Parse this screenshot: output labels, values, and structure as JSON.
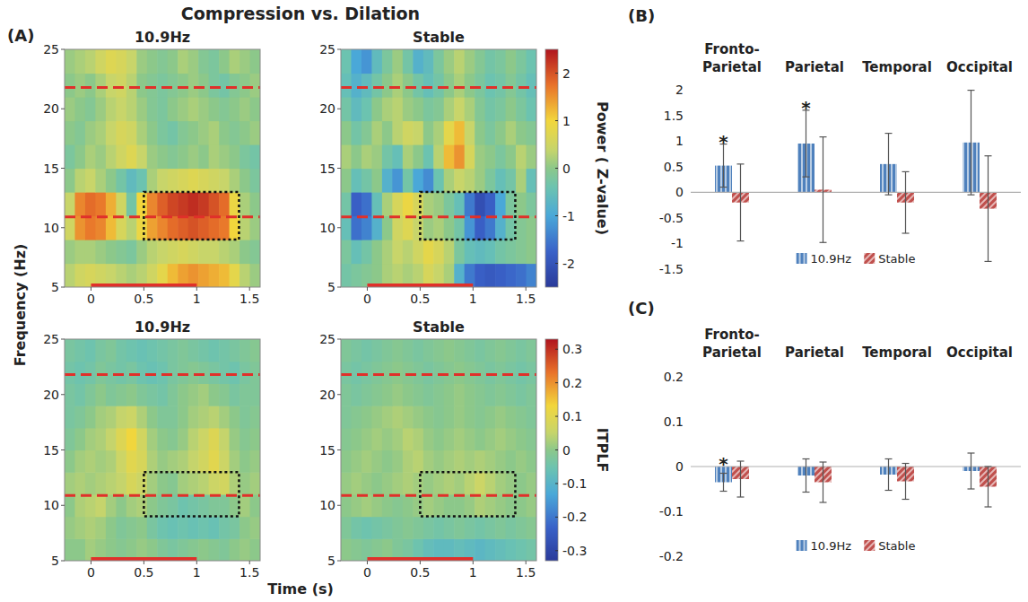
{
  "figure": {
    "title": "Compression vs. Dilation",
    "x_label": "Time (s)",
    "y_label": "Frequency (Hz)",
    "panel_labels": [
      "(A)",
      "(B)",
      "(C)"
    ]
  },
  "chart_data": [
    {
      "type": "heatmap",
      "title": "10.9Hz",
      "xlim": [
        -0.25,
        1.6
      ],
      "ylim": [
        5,
        25
      ],
      "xticks": [
        0,
        0.5,
        1,
        1.5
      ],
      "yticks": [
        5,
        10,
        15,
        20,
        25
      ],
      "color_range": [
        -2.5,
        2.5
      ],
      "reference_lines": [
        10.9,
        21.8
      ],
      "stimulus": [
        0,
        1
      ],
      "roi": {
        "x": [
          0.5,
          1.4
        ],
        "y": [
          9,
          13
        ]
      },
      "cells": [
        [
          0.3,
          0.5,
          0.6,
          0.5,
          0.4,
          0.3,
          0.2,
          0.3,
          0.5,
          0.8,
          1.2,
          1.4,
          1.5,
          1.4,
          1.3,
          1.2,
          0.8,
          0.3,
          0.1
        ],
        [
          0.1,
          0.2,
          0.2,
          0.1,
          0,
          -0.1,
          -0.2,
          0.1,
          0.3,
          0.4,
          0.5,
          0.6,
          0.5,
          0.4,
          0.4,
          0.3,
          0.2,
          0,
          -0.1
        ],
        [
          0.5,
          1.5,
          1.7,
          1.6,
          1.2,
          0.6,
          0.3,
          0.9,
          1.4,
          1.6,
          1.8,
          1.9,
          2.0,
          1.9,
          1.8,
          1.7,
          1.0,
          0.3,
          0.1
        ],
        [
          0.4,
          1.6,
          1.8,
          1.7,
          1.3,
          0.5,
          -0.3,
          1.0,
          1.6,
          1.9,
          2.1,
          2.2,
          2.3,
          2.2,
          2.0,
          1.8,
          0.9,
          0.2,
          0
        ],
        [
          0,
          0.3,
          0.4,
          0.2,
          0,
          -0.3,
          -0.6,
          -0.4,
          0.2,
          0.4,
          0.5,
          0.6,
          0.7,
          0.6,
          0.5,
          0.4,
          0.2,
          0,
          -0.2
        ],
        [
          -0.2,
          0,
          0.2,
          0.1,
          0.3,
          0.5,
          0.7,
          0.4,
          0.1,
          0,
          -0.1,
          0,
          0.1,
          0,
          0.2,
          0.1,
          0,
          -0.2,
          -0.3
        ],
        [
          0,
          -0.1,
          0.1,
          0.2,
          0.4,
          0.6,
          0.5,
          0.2,
          0,
          -0.2,
          -0.3,
          -0.1,
          0,
          0.1,
          0.2,
          0,
          -0.1,
          0,
          0.1
        ],
        [
          0.1,
          0,
          -0.1,
          0.1,
          0.3,
          0.4,
          0.3,
          0.1,
          -0.1,
          -0.2,
          0,
          0.1,
          0.2,
          0.1,
          0,
          -0.1,
          0,
          0.1,
          0
        ],
        [
          0,
          0.1,
          0,
          0.2,
          0.4,
          0.5,
          0.3,
          0,
          -0.1,
          -0.2,
          -0.1,
          0,
          0.1,
          0,
          -0.2,
          -0.3,
          -0.1,
          0,
          0.1
        ],
        [
          0.1,
          0.2,
          0.3,
          0.5,
          0.7,
          0.6,
          0.4,
          0.1,
          0,
          -0.1,
          0,
          0.2,
          0.1,
          -0.1,
          -0.2,
          0,
          0.2,
          0.1,
          0
        ]
      ]
    },
    {
      "type": "heatmap",
      "title": "Stable",
      "xlim": [
        -0.25,
        1.6
      ],
      "ylim": [
        5,
        25
      ],
      "xticks": [
        0,
        0.5,
        1,
        1.5
      ],
      "yticks": [
        5,
        10,
        15,
        20,
        25
      ],
      "color_range": [
        -2.5,
        2.5
      ],
      "color_ticks": [
        -2,
        -1,
        0,
        1,
        2
      ],
      "color_label": "Power ( Z-value)",
      "reference_lines": [
        10.9,
        21.8
      ],
      "stimulus": [
        0,
        1
      ],
      "roi": {
        "x": [
          0.5,
          1.4
        ],
        "y": [
          9,
          13
        ]
      },
      "cells": [
        [
          -0.3,
          -0.2,
          -0.1,
          0,
          0.2,
          0.3,
          0.2,
          0.3,
          0.6,
          0.4,
          0.2,
          -0.8,
          -1.5,
          -1.8,
          -1.9,
          -1.8,
          -1.7,
          -1.6,
          -1.4
        ],
        [
          -0.2,
          -0.5,
          -0.3,
          0,
          0.2,
          0.4,
          0.3,
          0.5,
          0.8,
          0.6,
          0.3,
          -0.2,
          -0.5,
          -0.6,
          -0.5,
          -0.3,
          -0.2,
          -0.1,
          0
        ],
        [
          -0.5,
          -1.6,
          -1.4,
          -0.8,
          0,
          0.5,
          0.7,
          0.4,
          0.1,
          0.2,
          0,
          -0.3,
          -1.2,
          -1.8,
          -1.5,
          -0.8,
          -0.3,
          -0.1,
          0
        ],
        [
          -0.3,
          -1.8,
          -1.6,
          -0.5,
          0.2,
          0.6,
          0.9,
          0.6,
          0.2,
          0.1,
          -0.2,
          -0.5,
          -1.5,
          -2.1,
          -1.8,
          -1.0,
          -0.2,
          0,
          -0.2
        ],
        [
          0,
          -0.5,
          -0.3,
          0,
          -0.8,
          -1.2,
          -0.3,
          -1.0,
          -1.3,
          -0.4,
          0.2,
          0.4,
          0.3,
          0.1,
          -0.2,
          -0.5,
          -0.3,
          0.2,
          -0.5
        ],
        [
          0.2,
          0,
          0.2,
          0.1,
          -0.3,
          -0.5,
          0.2,
          0,
          -0.4,
          0.3,
          1.2,
          1.5,
          0.6,
          0.1,
          0,
          -0.2,
          0,
          0.3,
          0.1
        ],
        [
          0,
          -0.3,
          -0.1,
          0.2,
          0,
          0.3,
          0.5,
          0.4,
          0,
          0.2,
          0.8,
          1.2,
          0.4,
          0,
          -0.2,
          0,
          0.2,
          0,
          -0.1
        ],
        [
          -0.3,
          -0.6,
          -0.4,
          0,
          0.2,
          0.3,
          0.1,
          0,
          -0.2,
          -0.1,
          0.2,
          0.4,
          0.2,
          -0.1,
          -0.3,
          -0.2,
          0,
          -0.2,
          -0.4
        ],
        [
          -0.5,
          -0.8,
          -0.6,
          -0.3,
          0,
          0.2,
          0,
          -0.3,
          -0.5,
          -0.3,
          0,
          0.2,
          0,
          -0.2,
          -0.4,
          -0.3,
          -0.1,
          -0.3,
          -0.5
        ],
        [
          -0.4,
          -1.0,
          -1.2,
          -0.6,
          -0.2,
          0.1,
          -0.3,
          -0.8,
          -0.6,
          -0.2,
          0.1,
          0.3,
          0.1,
          -0.1,
          -0.3,
          -0.2,
          0,
          -0.2,
          -0.4
        ]
      ]
    },
    {
      "type": "heatmap",
      "title": "10.9Hz",
      "xlim": [
        -0.25,
        1.6
      ],
      "ylim": [
        5,
        25
      ],
      "xticks": [
        0,
        0.5,
        1,
        1.5
      ],
      "yticks": [
        5,
        10,
        15,
        20,
        25
      ],
      "color_range": [
        -0.33,
        0.33
      ],
      "reference_lines": [
        10.9,
        21.8
      ],
      "stimulus": [
        0,
        1
      ],
      "roi": {
        "x": [
          0.5,
          1.4
        ],
        "y": [
          9,
          13
        ]
      },
      "cells": [
        [
          0,
          0,
          0.02,
          0.01,
          0,
          -0.01,
          0,
          0.01,
          0,
          -0.02,
          -0.03,
          -0.02,
          -0.01,
          0,
          -0.01,
          -0.02,
          0,
          0.01,
          0
        ],
        [
          0.01,
          0.02,
          0.03,
          0.02,
          0,
          -0.02,
          -0.01,
          0,
          -0.03,
          -0.05,
          -0.06,
          -0.05,
          -0.06,
          -0.05,
          -0.06,
          -0.04,
          -0.03,
          0,
          0.01
        ],
        [
          0,
          0.03,
          0.04,
          0.05,
          0.02,
          0,
          0.02,
          0.03,
          0,
          -0.02,
          -0.03,
          -0.05,
          -0.04,
          -0.03,
          -0.02,
          -0.02,
          0,
          0.02,
          0
        ],
        [
          0.02,
          0.03,
          0.02,
          0.03,
          0.04,
          0.05,
          0.08,
          0.06,
          0.02,
          0,
          -0.01,
          0.02,
          0.03,
          0.04,
          0.06,
          0.07,
          0.03,
          0.01,
          0.02
        ],
        [
          0,
          0.02,
          0.03,
          0.02,
          0.03,
          0.06,
          0.1,
          0.08,
          0.03,
          0.01,
          0.02,
          0.03,
          0.05,
          0.07,
          0.1,
          0.06,
          0.02,
          0,
          0.01
        ],
        [
          -0.02,
          0,
          0.02,
          0.03,
          0.05,
          0.09,
          0.13,
          0.07,
          0.02,
          0,
          -0.01,
          0.01,
          0.04,
          0.06,
          0.09,
          0.05,
          0.01,
          -0.01,
          0
        ],
        [
          -0.03,
          -0.02,
          0,
          0.02,
          0.03,
          0.05,
          0.06,
          0.03,
          0,
          -0.02,
          -0.02,
          0,
          0.02,
          0.03,
          0.04,
          0.02,
          0,
          -0.02,
          -0.01
        ],
        [
          -0.03,
          -0.04,
          -0.02,
          0,
          -0.02,
          -0.01,
          0,
          -0.02,
          -0.03,
          -0.04,
          -0.02,
          0,
          0.01,
          0.02,
          0,
          -0.01,
          -0.03,
          -0.02,
          -0.02
        ],
        [
          -0.04,
          -0.05,
          -0.04,
          -0.02,
          -0.03,
          -0.04,
          -0.03,
          -0.05,
          -0.06,
          -0.05,
          -0.03,
          -0.02,
          -0.01,
          -0.02,
          -0.03,
          -0.04,
          -0.05,
          -0.03,
          -0.02
        ],
        [
          -0.03,
          -0.04,
          -0.05,
          -0.03,
          -0.02,
          -0.04,
          -0.05,
          -0.06,
          -0.05,
          -0.04,
          -0.03,
          -0.02,
          -0.03,
          -0.04,
          -0.05,
          -0.04,
          -0.03,
          -0.02,
          -0.01
        ]
      ]
    },
    {
      "type": "heatmap",
      "title": "Stable",
      "xlim": [
        -0.25,
        1.6
      ],
      "ylim": [
        5,
        25
      ],
      "xticks": [
        0,
        0.5,
        1,
        1.5
      ],
      "yticks": [
        5,
        10,
        15,
        20,
        25
      ],
      "color_range": [
        -0.33,
        0.33
      ],
      "color_ticks": [
        -0.3,
        -0.2,
        -0.1,
        0,
        0.1,
        0.2,
        0.3
      ],
      "color_label": "ITPLF",
      "reference_lines": [
        10.9,
        21.8
      ],
      "stimulus": [
        0,
        1
      ],
      "roi": {
        "x": [
          0.5,
          1.4
        ],
        "y": [
          9,
          13
        ]
      },
      "cells": [
        [
          0,
          -0.01,
          -0.02,
          -0.01,
          0,
          -0.02,
          -0.03,
          -0.05,
          -0.07,
          -0.08,
          -0.08,
          -0.07,
          -0.08,
          -0.09,
          -0.08,
          -0.07,
          -0.06,
          -0.05,
          -0.04
        ],
        [
          -0.02,
          -0.04,
          -0.05,
          -0.04,
          -0.03,
          -0.02,
          -0.01,
          -0.02,
          -0.03,
          -0.04,
          -0.03,
          -0.02,
          -0.03,
          -0.04,
          -0.03,
          -0.02,
          -0.03,
          -0.02,
          -0.01
        ],
        [
          0,
          0.01,
          0.02,
          0.01,
          0,
          -0.01,
          0,
          0.01,
          0.02,
          0.01,
          0,
          0,
          0.01,
          0.03,
          0.02,
          0.01,
          0,
          0,
          0.01
        ],
        [
          0.01,
          0.02,
          0.01,
          0,
          0.01,
          0.02,
          0.03,
          0.02,
          0.01,
          0.02,
          0.03,
          0.02,
          0.04,
          0.06,
          0.04,
          0.02,
          0.01,
          0,
          0.01
        ],
        [
          0,
          0.01,
          0.02,
          0.01,
          0,
          0.01,
          0.03,
          0.04,
          0.02,
          0.01,
          0.02,
          0.03,
          0.02,
          0.03,
          0.02,
          0.01,
          0,
          0.01,
          0
        ],
        [
          -0.01,
          0,
          0.01,
          0.02,
          0.01,
          0.02,
          0.04,
          0.03,
          0.01,
          0,
          0.01,
          0.02,
          0.01,
          0,
          0.01,
          0.02,
          0.01,
          0,
          -0.01
        ],
        [
          -0.02,
          -0.01,
          0,
          0.01,
          0.02,
          0.03,
          0.02,
          0.01,
          0,
          -0.01,
          0,
          0.01,
          0,
          -0.01,
          0,
          0.01,
          0,
          -0.01,
          -0.02
        ],
        [
          -0.02,
          -0.03,
          -0.02,
          -0.01,
          0,
          0.01,
          0,
          -0.01,
          -0.02,
          -0.01,
          0,
          0.01,
          0,
          -0.01,
          -0.02,
          -0.01,
          -0.02,
          -0.03,
          -0.02
        ],
        [
          -0.03,
          -0.04,
          -0.03,
          -0.02,
          -0.01,
          0,
          -0.01,
          -0.02,
          -0.03,
          -0.02,
          -0.01,
          0,
          -0.01,
          -0.02,
          -0.03,
          -0.02,
          -0.03,
          -0.04,
          -0.03
        ],
        [
          -0.02,
          -0.03,
          -0.04,
          -0.03,
          -0.02,
          -0.01,
          -0.02,
          -0.03,
          -0.02,
          -0.01,
          0,
          -0.01,
          -0.02,
          -0.03,
          -0.02,
          -0.01,
          -0.02,
          -0.03,
          -0.02
        ]
      ]
    },
    {
      "type": "bar",
      "categories": [
        "Fronto-Parietal",
        "Parietal",
        "Temporal",
        "Occipital"
      ],
      "ylim": [
        -1.5,
        2
      ],
      "yticks": [
        -1.5,
        -1,
        -0.5,
        0,
        0.5,
        1,
        1.5,
        2
      ],
      "legend": "bottom",
      "series": [
        {
          "name": "10.9Hz",
          "color": "#4f81bd",
          "values": [
            0.52,
            0.95,
            0.55,
            0.97
          ],
          "errors": [
            0.42,
            0.65,
            0.6,
            1.02
          ],
          "significance": [
            "*",
            "*",
            null,
            null
          ]
        },
        {
          "name": "Stable",
          "color": "#c0504d",
          "values": [
            -0.2,
            0.05,
            -0.2,
            -0.32
          ],
          "errors": [
            0.75,
            1.03,
            0.6,
            1.03
          ]
        }
      ]
    },
    {
      "type": "bar",
      "categories": [
        "Fronto-Parietal",
        "Parietal",
        "Temporal",
        "Occipital"
      ],
      "ylim": [
        -0.2,
        0.2
      ],
      "yticks": [
        -0.2,
        -0.1,
        0,
        0.1,
        0.2
      ],
      "legend": "bottom",
      "series": [
        {
          "name": "10.9Hz",
          "color": "#4f81bd",
          "values": [
            -0.035,
            -0.02,
            -0.018,
            -0.01
          ],
          "errors": [
            0.02,
            0.037,
            0.035,
            0.04
          ],
          "significance": [
            "*",
            null,
            null,
            null
          ]
        },
        {
          "name": "Stable",
          "color": "#c0504d",
          "values": [
            -0.028,
            -0.035,
            -0.033,
            -0.045
          ],
          "errors": [
            0.04,
            0.045,
            0.04,
            0.045
          ]
        }
      ]
    }
  ]
}
